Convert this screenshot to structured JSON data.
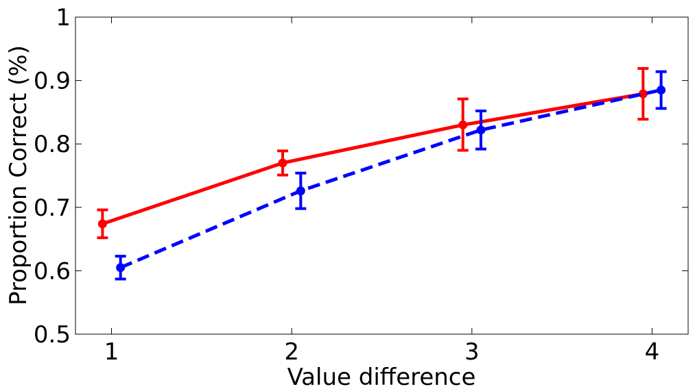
{
  "chart_data": {
    "type": "line",
    "title": "",
    "xlabel": "Value difference",
    "ylabel": "Proportion Correct (%)",
    "xlim": [
      0.8,
      4.2
    ],
    "ylim": [
      0.5,
      1.0
    ],
    "x_ticks": [
      1,
      2,
      3,
      4
    ],
    "x_tick_labels": [
      "1",
      "2",
      "3",
      "4"
    ],
    "y_ticks": [
      0.5,
      0.6,
      0.7,
      0.8,
      0.9,
      1.0
    ],
    "y_tick_labels": [
      "0.5",
      "0.6",
      "0.7",
      "0.8",
      "0.9",
      "1"
    ],
    "grid": false,
    "legend": false,
    "series": [
      {
        "color": "#ff0000",
        "line_style": "solid",
        "x": [
          0.95,
          1.95,
          2.95,
          3.95
        ],
        "y": [
          0.674,
          0.77,
          0.83,
          0.879
        ],
        "error_low": [
          0.652,
          0.751,
          0.79,
          0.839
        ],
        "error_high": [
          0.696,
          0.789,
          0.871,
          0.919
        ]
      },
      {
        "color": "#0000ff",
        "line_style": "dashed",
        "x": [
          1.05,
          2.05,
          3.05,
          4.05
        ],
        "y": [
          0.605,
          0.726,
          0.822,
          0.885
        ],
        "error_low": [
          0.587,
          0.698,
          0.792,
          0.856
        ],
        "error_high": [
          0.623,
          0.754,
          0.852,
          0.914
        ]
      }
    ]
  }
}
